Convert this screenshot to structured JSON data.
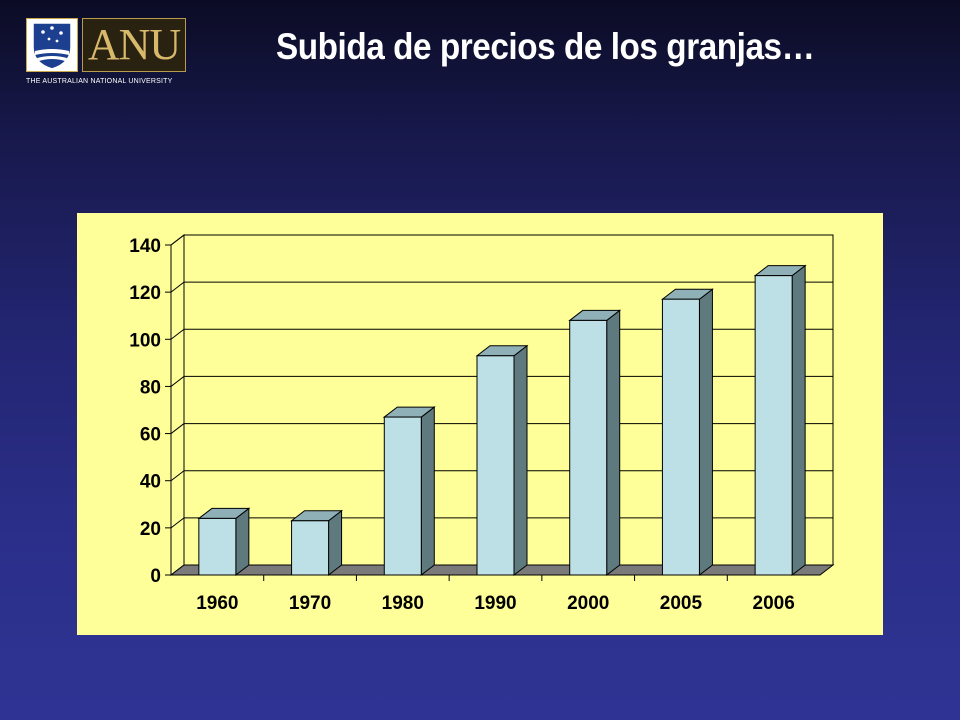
{
  "header": {
    "logo_word": "ANU",
    "logo_subtitle": "THE AUSTRALIAN NATIONAL UNIVERSITY",
    "title": "Subida de precios de los granjas…"
  },
  "colors": {
    "panel_bg": "#ffff99",
    "bar_front": "#bde0e6",
    "bar_side": "#5f7a7e",
    "bar_top": "#8fb0b6",
    "floor": "#7a7a7a",
    "title": "#ffffff"
  },
  "chart_data": {
    "type": "bar",
    "style": "3d-column",
    "categories": [
      "1960",
      "1970",
      "1980",
      "1990",
      "2000",
      "2005",
      "2006"
    ],
    "values": [
      24,
      23,
      67,
      93,
      108,
      117,
      127
    ],
    "yticks": [
      "0",
      "20",
      "40",
      "60",
      "80",
      "100",
      "120",
      "140"
    ],
    "ylim": [
      0,
      140
    ],
    "grid": true,
    "legend": "none",
    "title": "",
    "xlabel": "",
    "ylabel": ""
  }
}
